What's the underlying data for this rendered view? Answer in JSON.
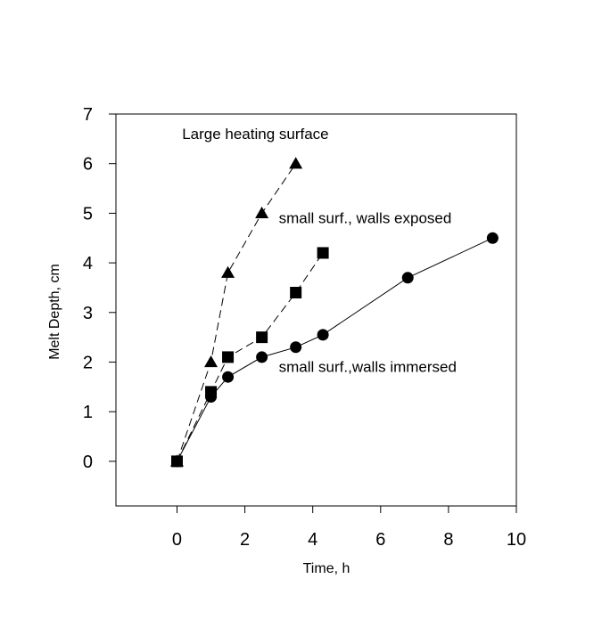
{
  "chart_data": {
    "type": "line",
    "xlabel": "Time, h",
    "ylabel": "Melt Depth, cm",
    "xlim": [
      -1.8,
      10
    ],
    "ylim": [
      -0.9,
      7
    ],
    "x_ticks": [
      0,
      2,
      4,
      6,
      8,
      10
    ],
    "y_ticks": [
      0,
      1,
      2,
      3,
      4,
      5,
      6,
      7
    ],
    "grid": false,
    "legend": "none",
    "series": [
      {
        "marker": "triangle",
        "line_style": "dashed",
        "color": "#000000",
        "points": [
          [
            0,
            0
          ],
          [
            1.0,
            2.0
          ],
          [
            1.5,
            3.8
          ],
          [
            2.5,
            5.0
          ],
          [
            3.5,
            6.0
          ]
        ]
      },
      {
        "marker": "square",
        "line_style": "dashed",
        "color": "#000000",
        "points": [
          [
            0,
            0
          ],
          [
            1.0,
            1.4
          ],
          [
            1.5,
            2.1
          ],
          [
            2.5,
            2.5
          ],
          [
            3.5,
            3.4
          ],
          [
            4.3,
            4.2
          ]
        ]
      },
      {
        "marker": "circle",
        "line_style": "solid",
        "color": "#000000",
        "points": [
          [
            0,
            0
          ],
          [
            1.0,
            1.3
          ],
          [
            1.5,
            1.7
          ],
          [
            2.5,
            2.1
          ],
          [
            3.5,
            2.3
          ],
          [
            4.3,
            2.55
          ],
          [
            6.8,
            3.7
          ],
          [
            9.3,
            4.5
          ]
        ]
      }
    ],
    "annotations": [
      {
        "text": "Large heating surface",
        "x": 0.15,
        "y": 6.5
      },
      {
        "text": "small surf., walls exposed",
        "x": 3.0,
        "y": 4.8
      },
      {
        "text": "small surf.,walls immersed",
        "x": 3.0,
        "y": 1.8
      }
    ]
  }
}
